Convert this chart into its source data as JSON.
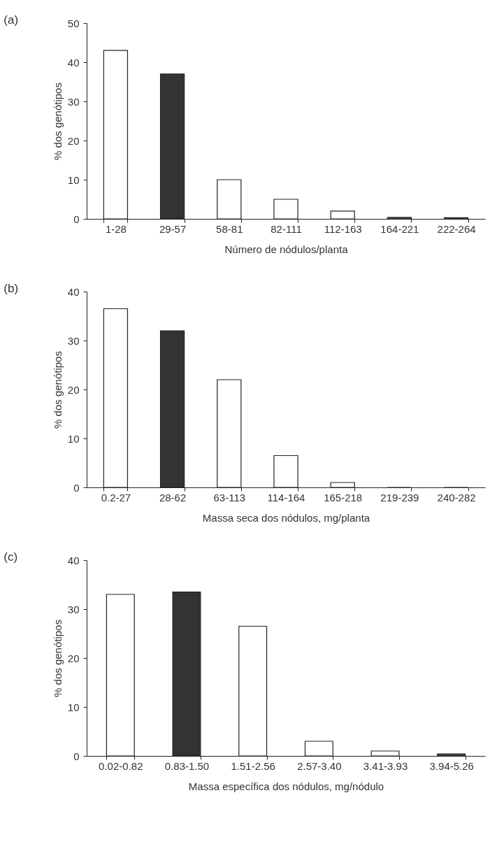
{
  "chart_data": [
    {
      "type": "bar",
      "title": "(a)",
      "xlabel": "Número de nódulos/planta",
      "ylabel": "% dos genótipos",
      "categories": [
        "1-28",
        "29-57",
        "58-81",
        "82-111",
        "112-163",
        "164-221",
        "222-264"
      ],
      "values": [
        43,
        37,
        10,
        5,
        2,
        0.4,
        0.3
      ],
      "colors": [
        "#ffffff",
        "#333333",
        "#ffffff",
        "#ffffff",
        "#ffffff",
        "#555555",
        "#555555"
      ],
      "ylim": [
        0,
        50
      ],
      "yticks": [
        0,
        10,
        20,
        30,
        40,
        50
      ],
      "grid": false
    },
    {
      "type": "bar",
      "title": "(b)",
      "xlabel": "Massa seca dos nódulos, mg/planta",
      "ylabel": "% dos genótipos",
      "categories": [
        "0.2-27",
        "28-62",
        "63-113",
        "114-164",
        "165-218",
        "219-239",
        "240-282"
      ],
      "values": [
        36.5,
        32,
        22,
        6.5,
        1,
        0,
        0
      ],
      "colors": [
        "#ffffff",
        "#333333",
        "#ffffff",
        "#ffffff",
        "#ffffff",
        "#ffffff",
        "#ffffff"
      ],
      "ylim": [
        0,
        40
      ],
      "yticks": [
        0,
        10,
        20,
        30,
        40
      ],
      "grid": false
    },
    {
      "type": "bar",
      "title": "(c)",
      "xlabel": "Massa específica dos nódulos, mg/nódulo",
      "ylabel": "% dos genótipos",
      "categories": [
        "0.02-0.82",
        "0.83-1.50",
        "1.51-2.56",
        "2.57-3.40",
        "3.41-3.93",
        "3.94-5.26"
      ],
      "values": [
        33,
        33.5,
        26.5,
        3,
        1,
        0.4
      ],
      "colors": [
        "#ffffff",
        "#333333",
        "#ffffff",
        "#ffffff",
        "#ffffff",
        "#444444"
      ],
      "ylim": [
        0,
        40
      ],
      "yticks": [
        0,
        10,
        20,
        30,
        40
      ],
      "grid": false
    }
  ]
}
